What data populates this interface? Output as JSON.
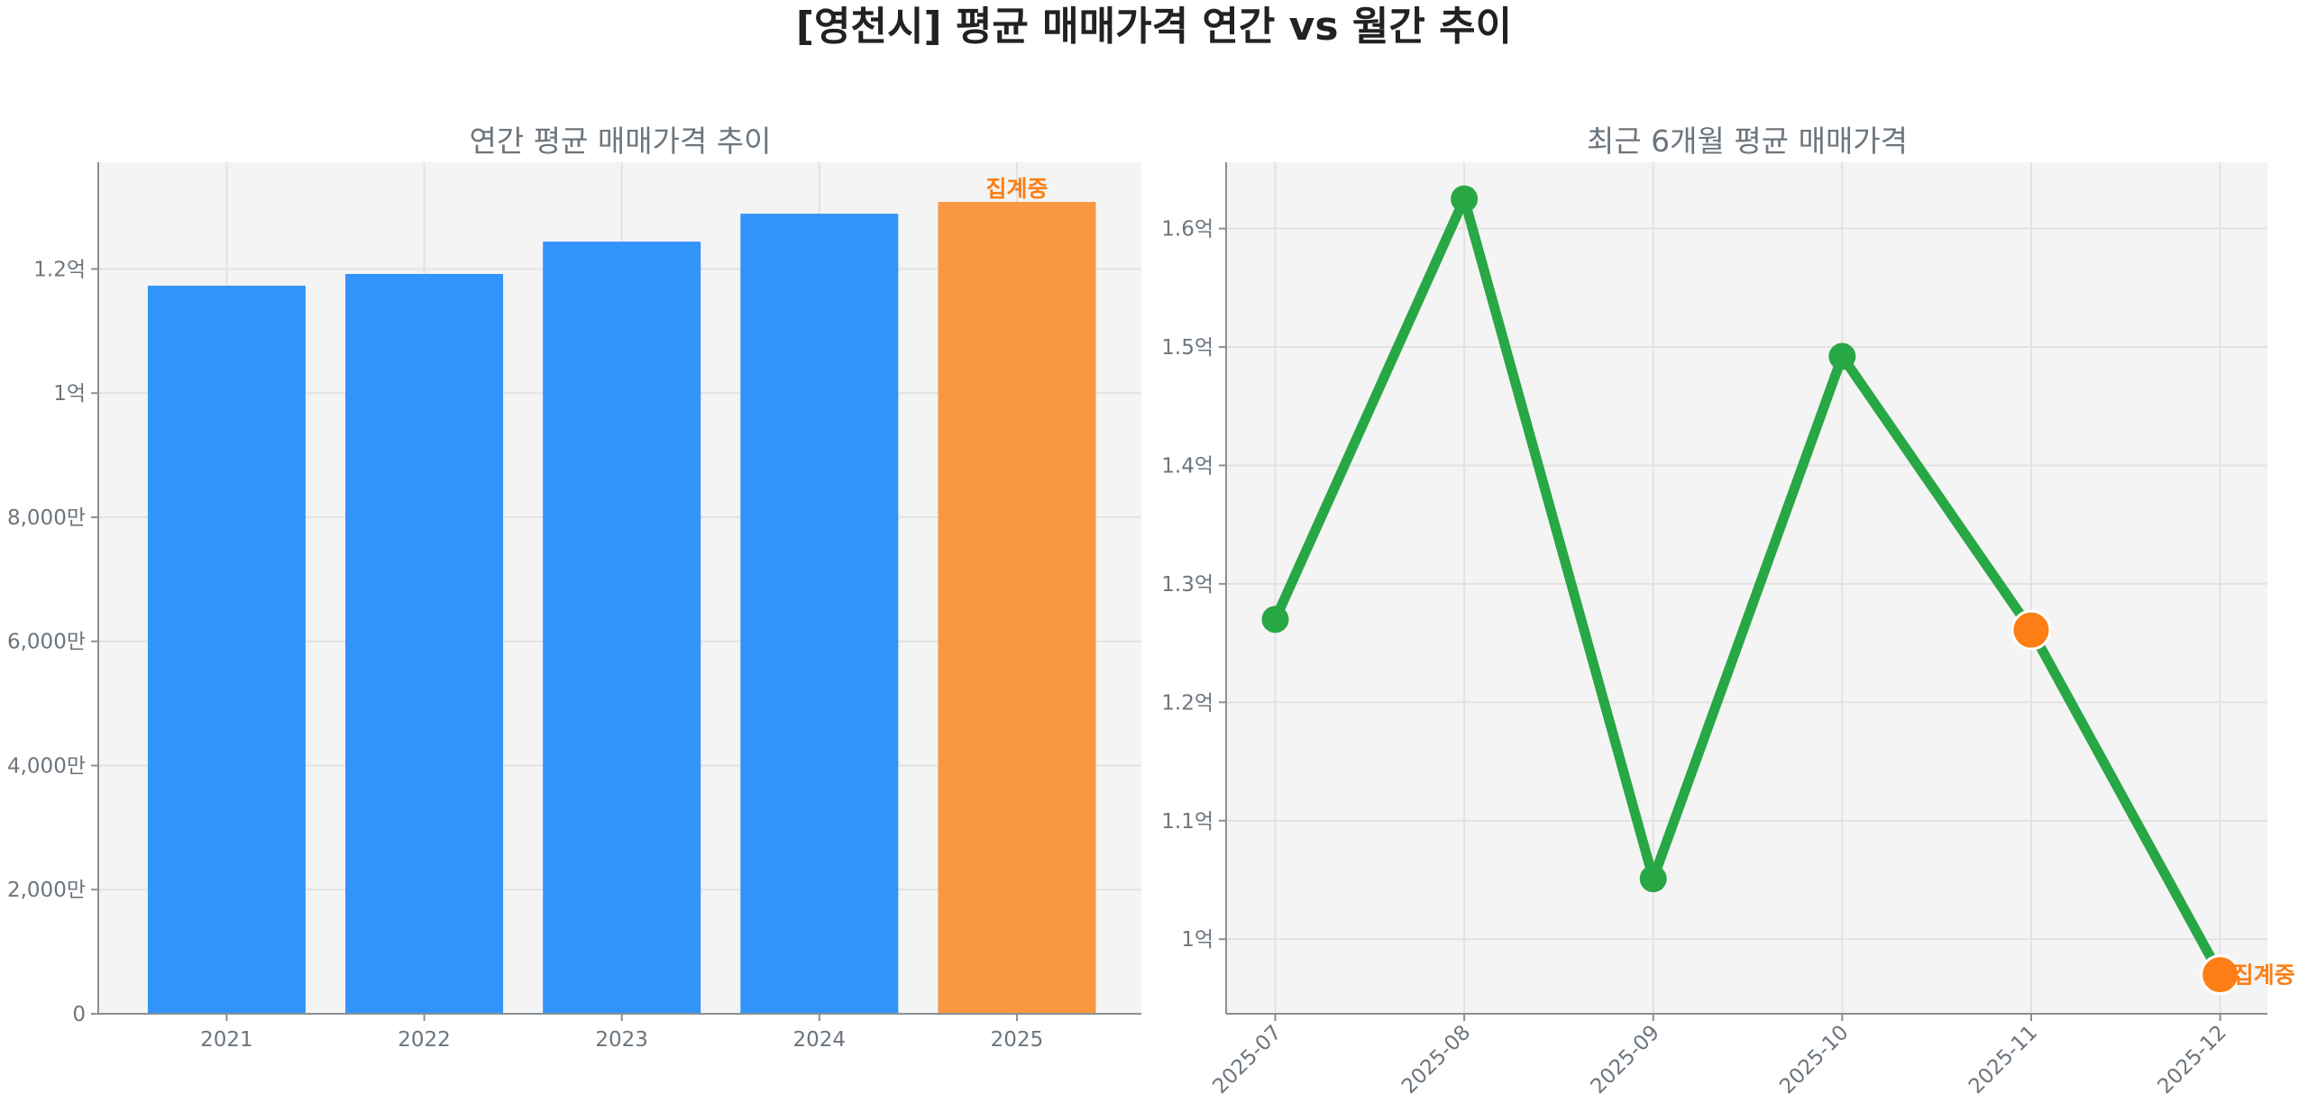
{
  "title": "[영천시] 평균 매매가격 연간 vs 월간 추이",
  "colors": {
    "bar": "#3194FA",
    "bar_partial": "#F99840",
    "line": "#28A745",
    "marker_partial": "#FD7E14",
    "annotation": "#FD7E14",
    "plot_bg": "#F4F4F4"
  },
  "chart_data": [
    {
      "type": "bar",
      "title": "연간 평균 매매가격 추이",
      "categories": [
        "2021",
        "2022",
        "2023",
        "2024",
        "2025"
      ],
      "values": [
        117300000,
        119200000,
        124400000,
        128900000,
        130800000
      ],
      "highlight": [
        false,
        false,
        false,
        false,
        true
      ],
      "annotation": {
        "category": "2025",
        "text": "집계중"
      },
      "yticks": [
        0,
        20000000,
        40000000,
        60000000,
        80000000,
        100000000,
        120000000
      ],
      "ytick_labels": [
        "0",
        "2,000만",
        "4,000만",
        "6,000만",
        "8,000만",
        "1억",
        "1.2억"
      ],
      "ylim": [
        0,
        137200000
      ],
      "grid": true,
      "xlabel": "",
      "ylabel": ""
    },
    {
      "type": "line",
      "title": "최근 6개월 평균 매매가격",
      "x": [
        "2025-07",
        "2025-08",
        "2025-09",
        "2025-10",
        "2025-11",
        "2025-12"
      ],
      "values": [
        127000000,
        162500000,
        105100000,
        149200000,
        126100000,
        97000000
      ],
      "highlight": [
        false,
        false,
        false,
        false,
        true,
        true
      ],
      "annotation": {
        "x": "2025-12",
        "text": "집계중"
      },
      "yticks": [
        100000000,
        110000000,
        120000000,
        130000000,
        140000000,
        150000000,
        160000000
      ],
      "ytick_labels": [
        "1억",
        "1.1억",
        "1.2억",
        "1.3억",
        "1.4억",
        "1.5억",
        "1.6억"
      ],
      "ylim": [
        93700000,
        165600000
      ],
      "grid": true,
      "xlabel": "",
      "ylabel": ""
    }
  ]
}
